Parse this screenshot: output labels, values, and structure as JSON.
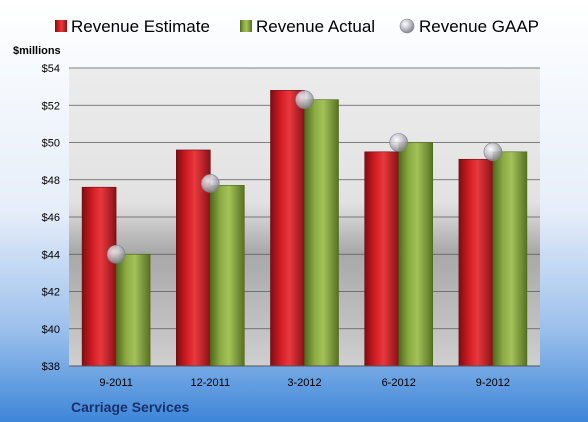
{
  "chart_data": {
    "type": "bar",
    "title": "Carriage Services",
    "ylabel": "$millions",
    "xlabel": "",
    "ylim": [
      38,
      54
    ],
    "yticks": [
      38,
      40,
      42,
      44,
      46,
      48,
      50,
      52,
      54
    ],
    "ytick_labels": [
      "$38",
      "$40",
      "$42",
      "$44",
      "$46",
      "$48",
      "$50",
      "$52",
      "$54"
    ],
    "categories": [
      "9-2011",
      "12-2011",
      "3-2012",
      "6-2012",
      "9-2012"
    ],
    "grid": true,
    "legend_position": "top",
    "series": [
      {
        "name": "Revenue Estimate",
        "kind": "bar",
        "color": "#c8161e",
        "values": [
          47.6,
          49.6,
          52.8,
          49.5,
          49.1
        ]
      },
      {
        "name": "Revenue Actual",
        "kind": "bar",
        "color": "#86a53c",
        "values": [
          44.0,
          47.7,
          52.3,
          50.0,
          49.5
        ]
      },
      {
        "name": "Revenue GAAP",
        "kind": "marker",
        "color": "#b4b4bc",
        "values": [
          44.0,
          47.8,
          52.3,
          50.0,
          49.5
        ]
      }
    ]
  }
}
